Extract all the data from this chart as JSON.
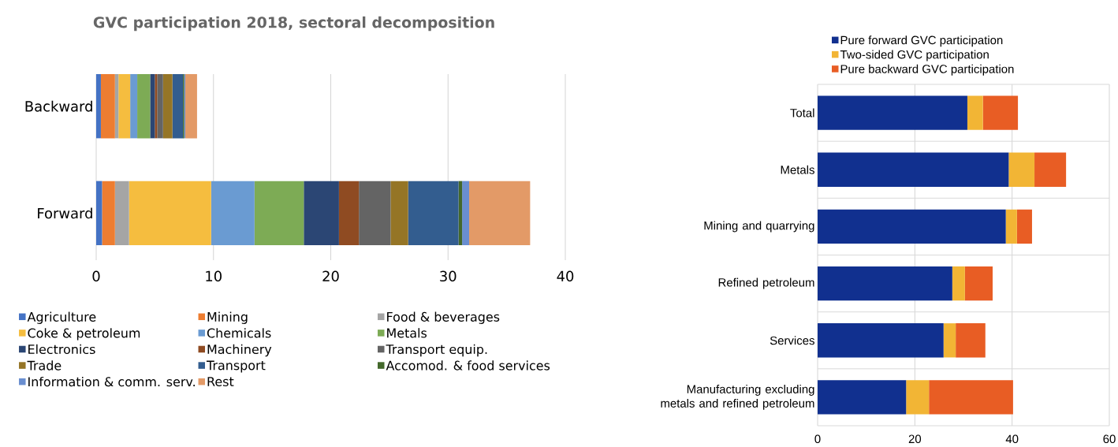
{
  "chart_data": [
    {
      "type": "bar",
      "orientation": "horizontal",
      "stacked": true,
      "title": "GVC participation 2018, sectoral decomposition",
      "categories": [
        "Backward",
        "Forward"
      ],
      "series": [
        {
          "name": "Agriculture",
          "color": "#4472c4",
          "values": [
            0.4,
            0.5
          ]
        },
        {
          "name": "Mining",
          "color": "#ed7d31",
          "values": [
            1.2,
            1.1
          ]
        },
        {
          "name": "Food & beverages",
          "color": "#a5a5a5",
          "values": [
            0.3,
            1.2
          ]
        },
        {
          "name": "Coke & petroleum",
          "color": "#f5bd3f",
          "values": [
            1.0,
            7.0
          ]
        },
        {
          "name": "Chemicals",
          "color": "#6a9bd2",
          "values": [
            0.6,
            3.7
          ]
        },
        {
          "name": "Metals",
          "color": "#7dab55",
          "values": [
            1.1,
            4.2
          ]
        },
        {
          "name": "Electronics",
          "color": "#2b4674",
          "values": [
            0.4,
            3.0
          ]
        },
        {
          "name": "Machinery",
          "color": "#8f4b22",
          "values": [
            0.2,
            1.7
          ]
        },
        {
          "name": "Transport equip.",
          "color": "#646464",
          "values": [
            0.5,
            2.7
          ]
        },
        {
          "name": "Trade",
          "color": "#957526",
          "values": [
            0.8,
            1.5
          ]
        },
        {
          "name": "Transport",
          "color": "#335d8f",
          "values": [
            0.9,
            4.3
          ]
        },
        {
          "name": "Accomod. & food services",
          "color": "#43682b",
          "values": [
            0.1,
            0.3
          ]
        },
        {
          "name": "Information & comm. serv.",
          "color": "#698ed0",
          "values": [
            0.1,
            0.6
          ]
        },
        {
          "name": "Rest",
          "color": "#e39a67",
          "values": [
            1.0,
            5.2
          ]
        }
      ],
      "xlim": [
        0,
        40
      ],
      "xticks": [
        0,
        10,
        20,
        30,
        40
      ],
      "grid": "x",
      "legend": "bottom"
    },
    {
      "type": "bar",
      "orientation": "horizontal",
      "stacked": true,
      "categories": [
        "Total",
        "Metals",
        "Mining and quarrying",
        "Refined petroleum",
        "Services",
        "Manufacturing excluding metals and refined petroleum"
      ],
      "series": [
        {
          "name": "Pure forward GVC participation",
          "color": "#11308f",
          "values": [
            30.8,
            39.3,
            38.7,
            27.7,
            25.9,
            18.2
          ]
        },
        {
          "name": "Two-sided GVC participation",
          "color": "#f2b535",
          "values": [
            3.2,
            5.3,
            2.3,
            2.6,
            2.5,
            4.7
          ]
        },
        {
          "name": "Pure backward GVC participation",
          "color": "#e85d24",
          "values": [
            7.2,
            6.5,
            3.1,
            5.7,
            6.1,
            17.3
          ]
        }
      ],
      "xlim": [
        0,
        60
      ],
      "xticks": [
        0,
        20,
        40,
        60
      ],
      "grid": true,
      "legend": "top"
    }
  ]
}
